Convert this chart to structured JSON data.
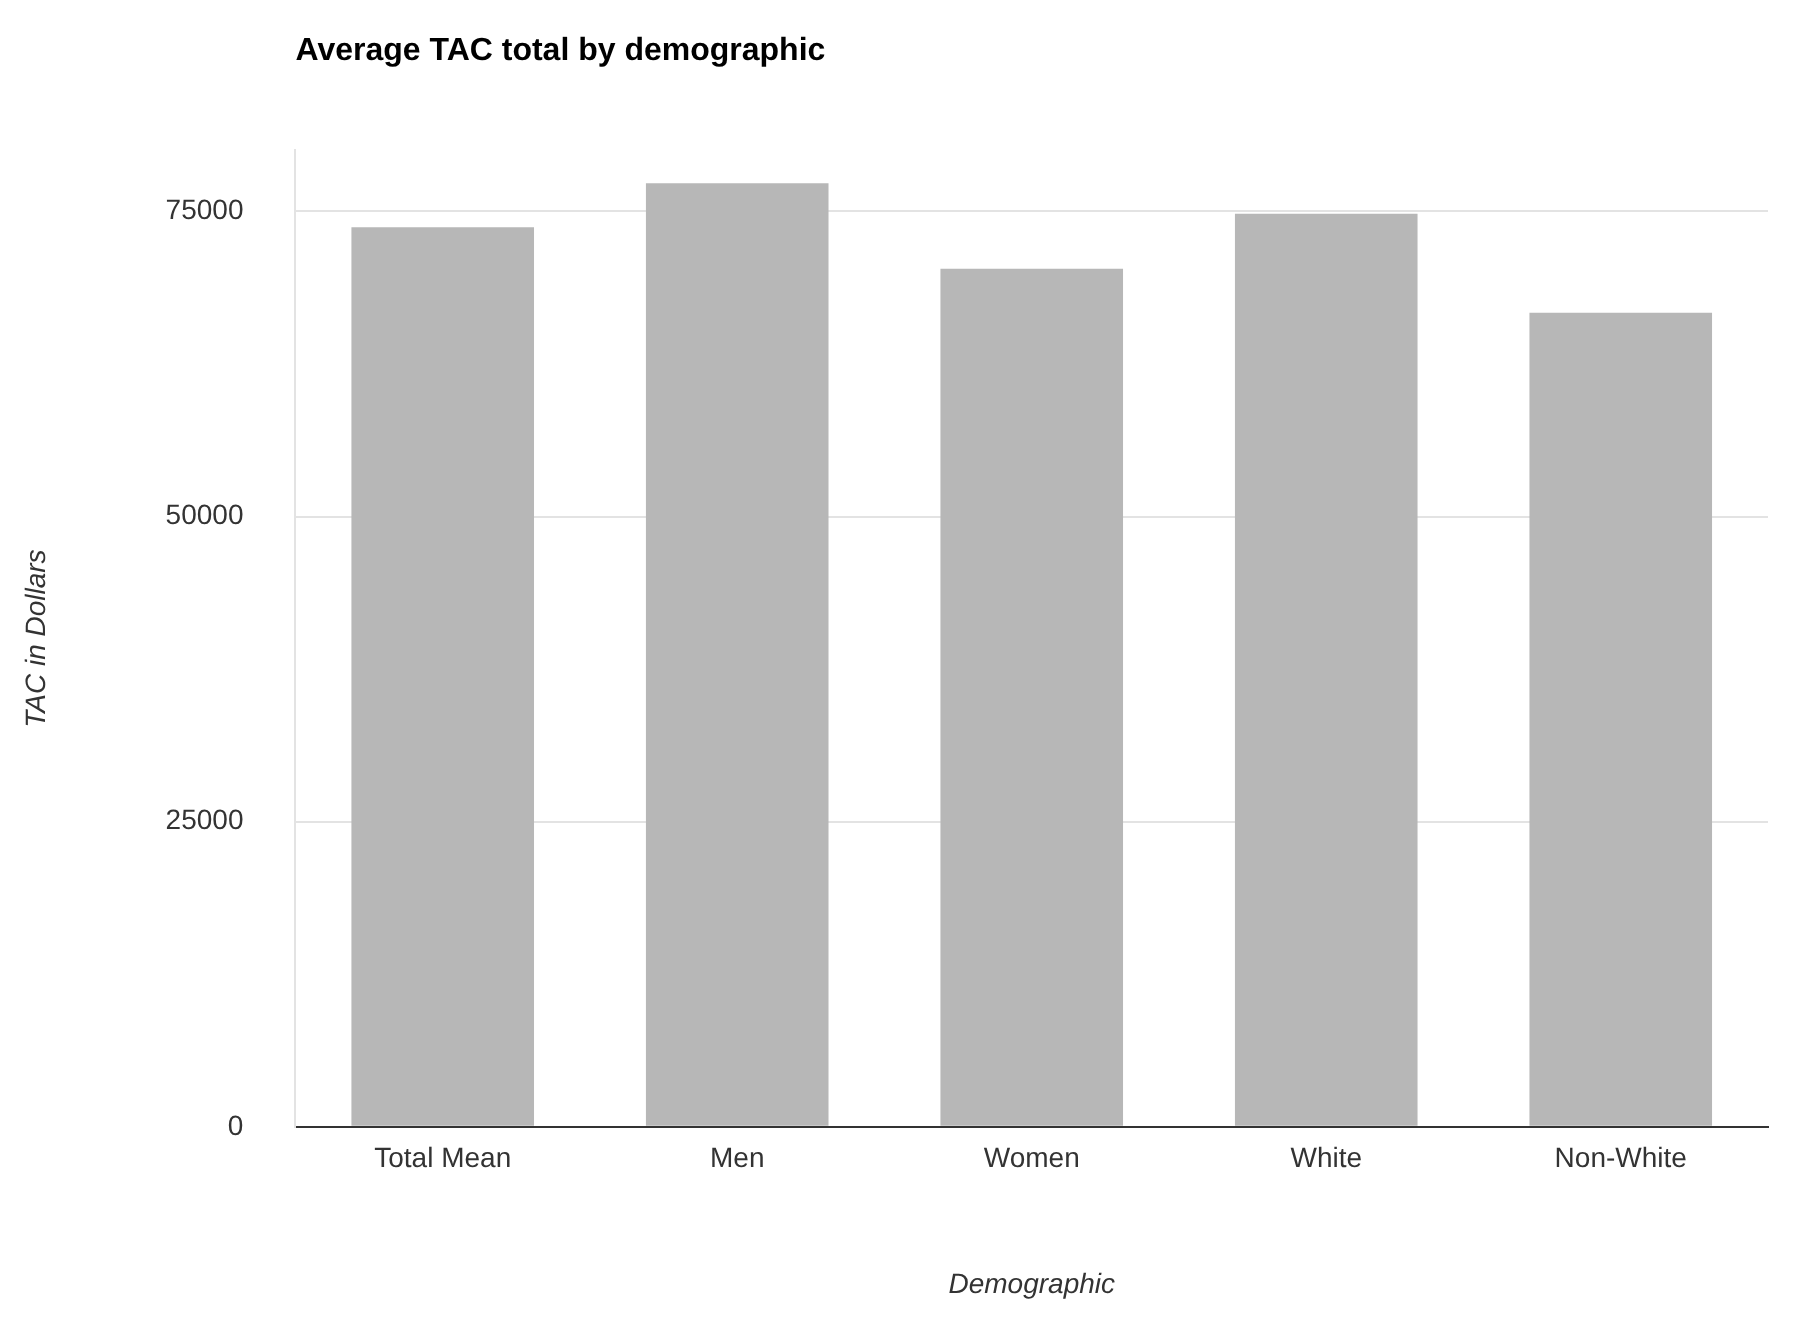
{
  "chart_data": {
    "type": "bar",
    "title": "Average TAC total by demographic",
    "xlabel": "Demographic",
    "ylabel": "TAC in Dollars",
    "categories": [
      "Total Mean",
      "Men",
      "Women",
      "White",
      "Non-White"
    ],
    "values": [
      73700,
      77300,
      70300,
      74800,
      66700
    ],
    "color": "#b7b7b7",
    "ylim": [
      0,
      80000
    ],
    "yticks": [
      0,
      25000,
      50000,
      75000
    ],
    "grid": "y"
  }
}
